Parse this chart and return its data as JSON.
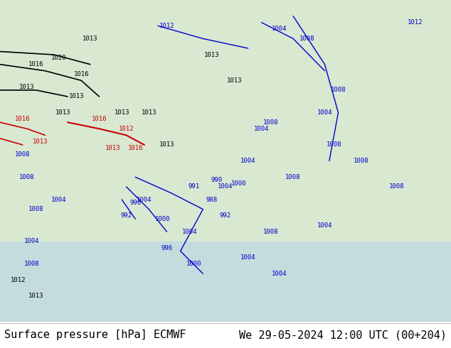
{
  "title_left": "Surface pressure [hPa] ECMWF",
  "title_right": "We 29-05-2024 12:00 UTC (00+204)",
  "footer_bg": "#ffffff",
  "footer_text_color": "#000000",
  "footer_fontsize": 11,
  "fig_width": 6.34,
  "fig_height": 4.9,
  "dpi": 100
}
